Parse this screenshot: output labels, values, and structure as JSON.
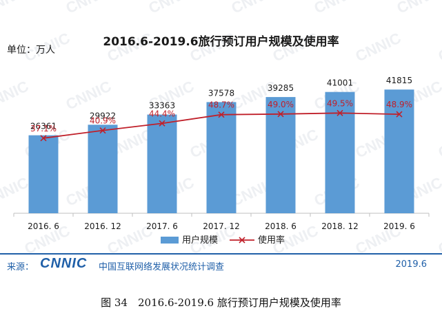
{
  "title": "2016.6-2019.6旅行预订用户规模及使用率",
  "unit_label": "单位：万人",
  "footer": {
    "source_label": "来源：",
    "logo_text": "CNNIC",
    "source_text": "中国互联网络发展状况统计调查",
    "date": "2019.6"
  },
  "caption": "图 34　2016.6-2019.6 旅行预订用户规模及使用率",
  "watermark": "CNNIC",
  "colors": {
    "bar": "#5b9bd5",
    "line": "#c0202a",
    "accent": "#1f5fa8"
  },
  "chart_data": {
    "type": "bar",
    "categories": [
      "2016. 6",
      "2016. 12",
      "2017. 6",
      "2017. 12",
      "2018. 6",
      "2018. 12",
      "2019. 6"
    ],
    "series": [
      {
        "name": "用户规模",
        "type": "bar",
        "values": [
          26361,
          29922,
          33363,
          37578,
          39285,
          41001,
          41815
        ],
        "labels": [
          "26361",
          "29922",
          "33363",
          "37578",
          "39285",
          "41001",
          "41815"
        ]
      },
      {
        "name": "使用率",
        "type": "line",
        "values": [
          37.1,
          40.9,
          44.4,
          48.7,
          49.0,
          49.5,
          48.9
        ],
        "labels": [
          "37.1%",
          "40.9%",
          "44.4%",
          "48.7%",
          "49.0%",
          "49.5%",
          "48.9%"
        ]
      }
    ],
    "ylim": [
      0,
      50000
    ],
    "y2lim": [
      0,
      70
    ],
    "legend_position": "bottom",
    "grid": false
  }
}
